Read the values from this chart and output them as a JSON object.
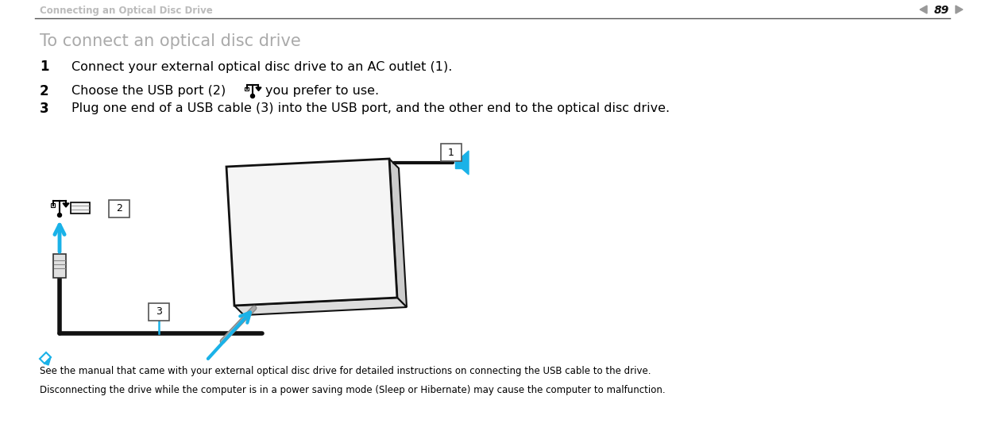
{
  "bg_color": "#ffffff",
  "header_text": "Connecting an Optical Disc Drive",
  "header_color": "#bbbbbb",
  "page_number": "89",
  "title": "To connect an optical disc drive",
  "title_color": "#aaaaaa",
  "step1_num": "1",
  "step1_text": "Connect your external optical disc drive to an AC outlet (1).",
  "step2_num": "2",
  "step2_text_a": "Choose the USB port (2)",
  "step2_text_b": "you prefer to use.",
  "step3_num": "3",
  "step3_text": "Plug one end of a USB cable (3) into the USB port, and the other end to the optical disc drive.",
  "note1": "See the manual that came with your external optical disc drive for detailed instructions on connecting the USB cable to the drive.",
  "note2": "Disconnecting the drive while the computer is in a power saving mode (Sleep or Hibernate) may cause the computer to malfunction.",
  "text_color": "#000000",
  "accent_color": "#1ab2e8",
  "drive_face_color": "#f5f5f5",
  "drive_edge_color": "#111111",
  "drive_side_color": "#cccccc",
  "cable_color": "#111111",
  "label_bg": "#ffffff",
  "label_border": "#555555",
  "header_line_color": "#555555",
  "pg_arrow_color": "#999999"
}
